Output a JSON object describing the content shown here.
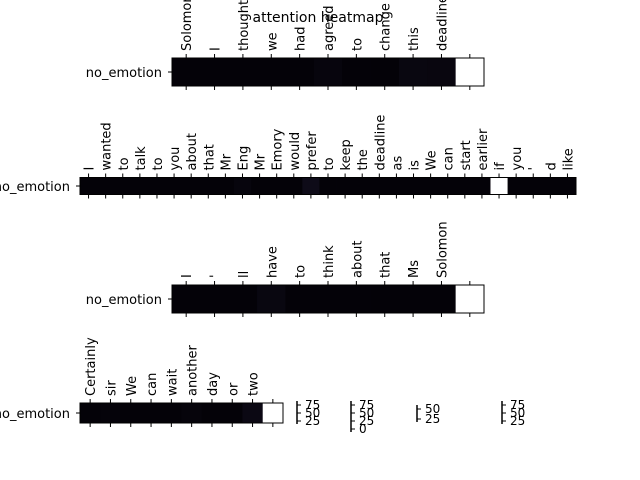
{
  "chart_data": {
    "type": "heatmap",
    "title": "attention heatmap",
    "panels": [
      {
        "row_label": "no_emotion",
        "tokens": [
          "Solomon",
          "I",
          "thought",
          "we",
          "had",
          "agreed",
          "to",
          "change",
          "this",
          "deadline",
          ""
        ],
        "values": [
          0,
          0,
          0,
          0,
          0,
          5,
          0,
          0,
          8,
          7,
          100
        ]
      },
      {
        "row_label": "no_emotion",
        "tokens": [
          "I",
          "wanted",
          "to",
          "talk",
          "to",
          "you",
          "about",
          "that",
          "Mr",
          "Eng",
          "Mr",
          "Emory",
          "would",
          "prefer",
          "to",
          "keep",
          "the",
          "deadline",
          "as",
          "is",
          "We",
          "can",
          "start",
          "earlier",
          "if",
          "you",
          "'",
          "d",
          "like"
        ],
        "values": [
          0,
          0,
          0,
          0,
          0,
          0,
          0,
          0,
          0,
          5,
          0,
          0,
          0,
          15,
          0,
          0,
          0,
          0,
          0,
          0,
          0,
          0,
          0,
          0,
          100,
          0,
          0,
          0,
          0
        ]
      },
      {
        "row_label": "no_emotion",
        "tokens": [
          "I",
          "'",
          "ll",
          "have",
          "to",
          "think",
          "about",
          "that",
          "Ms",
          "Solomon",
          ""
        ],
        "values": [
          0,
          0,
          0,
          8,
          0,
          0,
          0,
          0,
          0,
          0,
          100
        ]
      },
      {
        "row_label": "no_emotion",
        "tokens": [
          "Certainly",
          "sir",
          "We",
          "can",
          "wait",
          "another",
          "day",
          "or",
          "two",
          ""
        ],
        "values": [
          0,
          2,
          0,
          0,
          0,
          3,
          0,
          0,
          10,
          100
        ]
      }
    ],
    "colorbars": [
      {
        "ticks": [
          "75",
          "50",
          "25"
        ]
      },
      {
        "ticks": [
          "75",
          "50",
          "25",
          "0"
        ]
      },
      {
        "ticks": [
          "50",
          "25"
        ]
      },
      {
        "ticks": [
          "75",
          "50",
          "25"
        ]
      }
    ],
    "colormap": {
      "low": "#000004",
      "mid": "#1c1530",
      "high": "#ffffff"
    }
  }
}
